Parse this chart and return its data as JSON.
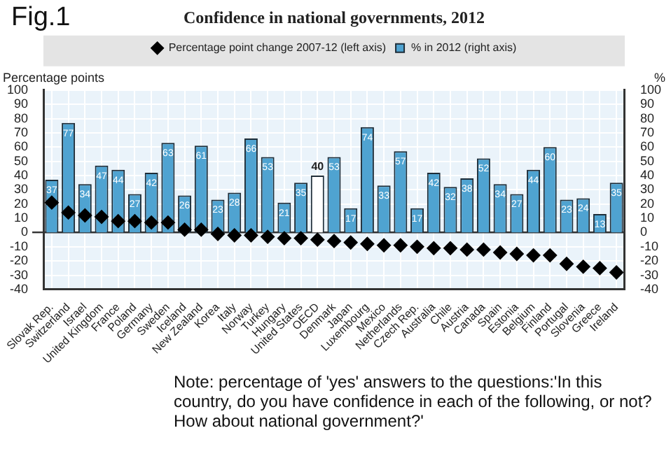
{
  "chart_data": {
    "type": "bar",
    "title": "Confidence in national governments, 2012",
    "categories": [
      "Slovak Rep.",
      "Switzerland",
      "Israel",
      "United Kingdom",
      "France",
      "Poland",
      "Germany",
      "Sweden",
      "Iceland",
      "New Zealand",
      "Korea",
      "Italy",
      "Norway",
      "Turkey",
      "Hungary",
      "United States",
      "OECD",
      "Denmark",
      "Japan",
      "Luxembourg",
      "Mexico",
      "Netherlands",
      "Czech Rep.",
      "Australia",
      "Chile",
      "Austria",
      "Canada",
      "Spain",
      "Estonia",
      "Belgium",
      "Finland",
      "Portugal",
      "Slovenia",
      "Greece",
      "Ireland"
    ],
    "series": [
      {
        "name": "% in 2012 (right axis)",
        "axis": "y2",
        "color": "#4fa3d1",
        "colors": [
          "#4fa3d1",
          "#4fa3d1",
          "#4fa3d1",
          "#4fa3d1",
          "#4fa3d1",
          "#4fa3d1",
          "#4fa3d1",
          "#4fa3d1",
          "#4fa3d1",
          "#4fa3d1",
          "#4fa3d1",
          "#4fa3d1",
          "#4fa3d1",
          "#4fa3d1",
          "#4fa3d1",
          "#4fa3d1",
          "#ffffff",
          "#4fa3d1",
          "#4fa3d1",
          "#4fa3d1",
          "#4fa3d1",
          "#4fa3d1",
          "#4fa3d1",
          "#4fa3d1",
          "#4fa3d1",
          "#4fa3d1",
          "#4fa3d1",
          "#4fa3d1",
          "#4fa3d1",
          "#4fa3d1",
          "#4fa3d1",
          "#4fa3d1",
          "#4fa3d1",
          "#4fa3d1",
          "#4fa3d1"
        ],
        "values": [
          37,
          77,
          34,
          47,
          44,
          27,
          42,
          63,
          26,
          61,
          23,
          28,
          66,
          53,
          21,
          35,
          40,
          53,
          17,
          74,
          33,
          57,
          17,
          42,
          32,
          38,
          52,
          34,
          27,
          44,
          60,
          23,
          24,
          13,
          35
        ],
        "value_labels": [
          "37",
          "77",
          "34",
          "47",
          "44",
          "27",
          "42",
          "63",
          "26",
          "61",
          "23",
          "28",
          "66",
          "53",
          "21",
          "35",
          "40",
          "53",
          "17",
          "74",
          "33",
          "57",
          "17",
          "42",
          "32",
          "38",
          "52",
          "34",
          "27",
          "44",
          "60",
          "23",
          "24",
          "13",
          "35"
        ]
      },
      {
        "name": "Percentage point change 2007-12 (left axis)",
        "type": "scatter",
        "axis": "y",
        "color": "#000000",
        "values": [
          21,
          14,
          12,
          11,
          8,
          8,
          7,
          7,
          2,
          2,
          -1,
          -2,
          -2,
          -3,
          -4,
          -4,
          -5,
          -6,
          -7,
          -8,
          -9,
          -9,
          -10,
          -11,
          -11,
          -12,
          -12,
          -14,
          -15,
          -16,
          -16,
          -22,
          -24,
          -25,
          -28
        ]
      }
    ],
    "ylabel": "Percentage points",
    "y2label": "%",
    "ylim": [
      -40,
      100
    ],
    "yticks": [
      -40,
      -30,
      -20,
      -10,
      0,
      10,
      20,
      30,
      40,
      50,
      60,
      70,
      80,
      90,
      100
    ],
    "y2lim": [
      -40,
      100
    ],
    "y2ticks": [
      -40,
      -30,
      -20,
      -10,
      0,
      10,
      20,
      30,
      40,
      50,
      60,
      70,
      80,
      90,
      100
    ],
    "legend": "top",
    "grid": true,
    "marker": "diamond",
    "annotations": [
      "Fig.1",
      "Note: percentage of 'yes' answers to the questions:'In this country, do you have confidence in each of the following, or not? How about national government?'"
    ]
  }
}
